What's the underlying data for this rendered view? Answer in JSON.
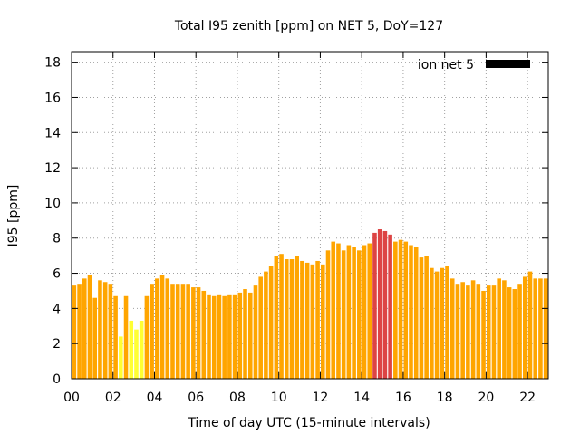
{
  "chart_data": {
    "type": "bar",
    "title": "Total I95 zenith [ppm] on NET 5, DoY=127",
    "xlabel": "Time of day UTC (15-minute intervals)",
    "ylabel": "I95 [ppm]",
    "xlim": [
      0,
      23
    ],
    "ylim": [
      0,
      18.6
    ],
    "x_step_hours": 0.25,
    "xticks": [
      0,
      2,
      4,
      6,
      8,
      10,
      12,
      14,
      16,
      18,
      20,
      22
    ],
    "xtick_labels": [
      "00",
      "02",
      "04",
      "06",
      "08",
      "10",
      "12",
      "14",
      "16",
      "18",
      "20",
      "22"
    ],
    "yticks": [
      0,
      2,
      4,
      6,
      8,
      10,
      12,
      14,
      16,
      18
    ],
    "ytick_labels": [
      "0",
      "2",
      "4",
      "6",
      "8",
      "10",
      "12",
      "14",
      "16",
      "18"
    ],
    "grid": true,
    "legend_position": "top-right",
    "series": [
      {
        "name": "ion net 5",
        "legend_color": "#000000",
        "values": [
          5.3,
          5.4,
          5.7,
          5.9,
          4.6,
          5.6,
          5.5,
          5.4,
          4.7,
          2.4,
          4.7,
          3.3,
          2.8,
          3.3,
          4.7,
          5.4,
          5.7,
          5.9,
          5.7,
          5.4,
          5.4,
          5.4,
          5.4,
          5.2,
          5.2,
          5.0,
          4.8,
          4.7,
          4.8,
          4.7,
          4.8,
          4.8,
          4.9,
          5.1,
          4.9,
          5.3,
          5.8,
          6.1,
          6.4,
          7.0,
          7.1,
          6.8,
          6.8,
          7.0,
          6.7,
          6.6,
          6.5,
          6.7,
          6.5,
          7.3,
          7.8,
          7.7,
          7.3,
          7.6,
          7.5,
          7.3,
          7.6,
          7.7,
          8.3,
          8.5,
          8.4,
          8.2,
          7.8,
          7.9,
          7.8,
          7.6,
          7.5,
          6.9,
          7.0,
          6.3,
          6.1,
          6.3,
          6.4,
          5.7,
          5.4,
          5.5,
          5.3,
          5.6,
          5.4,
          5.0,
          5.3,
          5.3,
          5.7,
          5.6,
          5.2,
          5.1,
          5.4,
          5.8,
          6.1,
          5.7,
          5.7,
          5.7
        ]
      }
    ],
    "color_thresholds": [
      {
        "max": 4.0,
        "color": "#ffff33"
      },
      {
        "max": 8.0,
        "color": "#ffa500"
      },
      {
        "max": 100,
        "color": "#dd4444"
      }
    ]
  }
}
